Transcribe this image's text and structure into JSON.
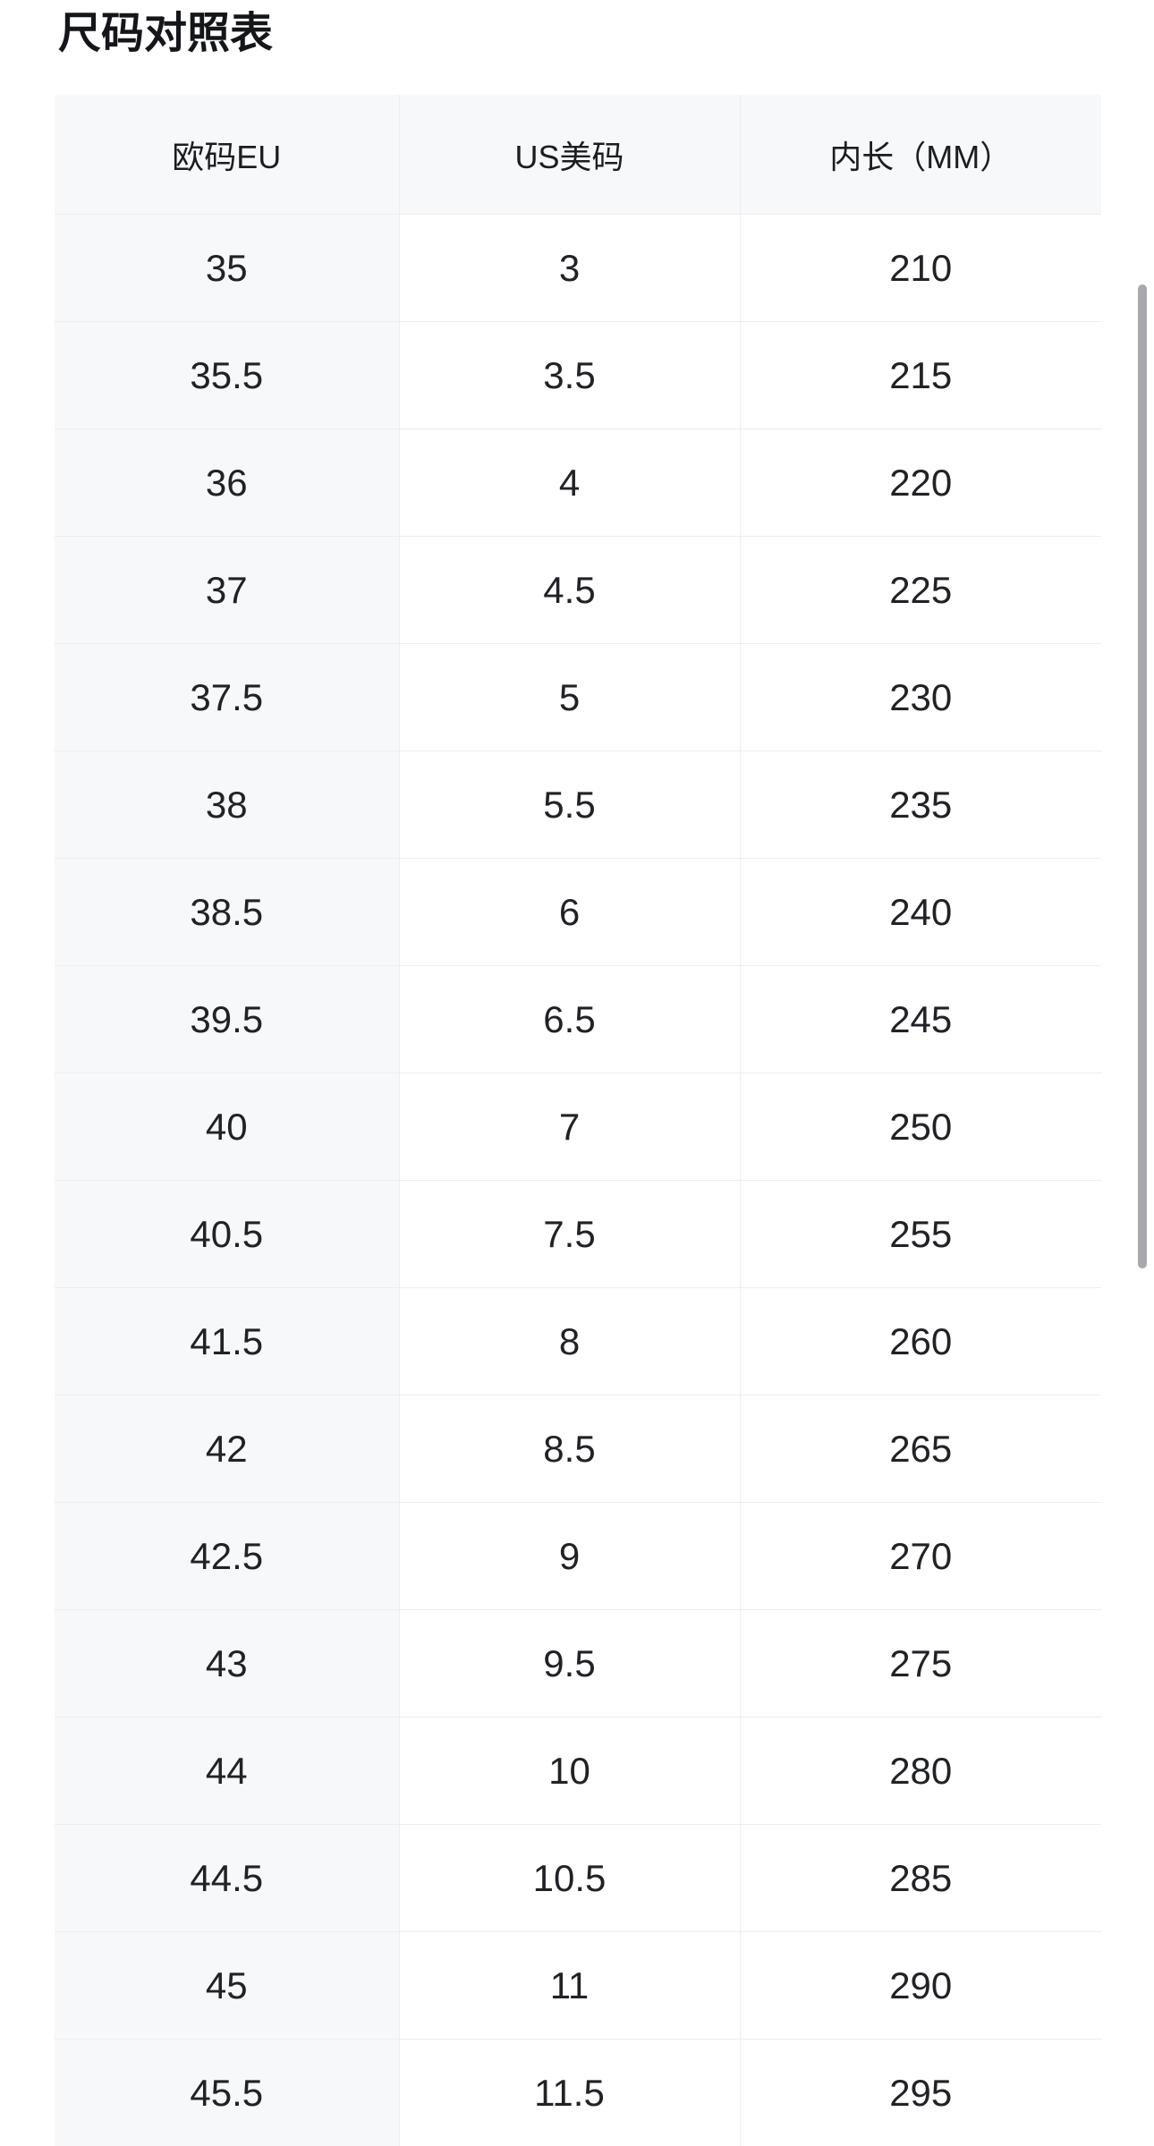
{
  "page": {
    "title": "尺码对照表"
  },
  "table": {
    "headers": [
      "欧码EU",
      "US美码",
      "内长（MM）"
    ],
    "rows": [
      [
        "35",
        "3",
        "210"
      ],
      [
        "35.5",
        "3.5",
        "215"
      ],
      [
        "36",
        "4",
        "220"
      ],
      [
        "37",
        "4.5",
        "225"
      ],
      [
        "37.5",
        "5",
        "230"
      ],
      [
        "38",
        "5.5",
        "235"
      ],
      [
        "38.5",
        "6",
        "240"
      ],
      [
        "39.5",
        "6.5",
        "245"
      ],
      [
        "40",
        "7",
        "250"
      ],
      [
        "40.5",
        "7.5",
        "255"
      ],
      [
        "41.5",
        "8",
        "260"
      ],
      [
        "42",
        "8.5",
        "265"
      ],
      [
        "42.5",
        "9",
        "270"
      ],
      [
        "43",
        "9.5",
        "275"
      ],
      [
        "44",
        "10",
        "280"
      ],
      [
        "44.5",
        "10.5",
        "285"
      ],
      [
        "45",
        "11",
        "290"
      ],
      [
        "45.5",
        "11.5",
        "295"
      ]
    ]
  },
  "colors": {
    "header_background": "#f7f8fa",
    "first_column_background": "#f7f8fa",
    "cell_border": "#ededf0",
    "text": "#202226",
    "scrollbar": "#a9a9ad"
  }
}
